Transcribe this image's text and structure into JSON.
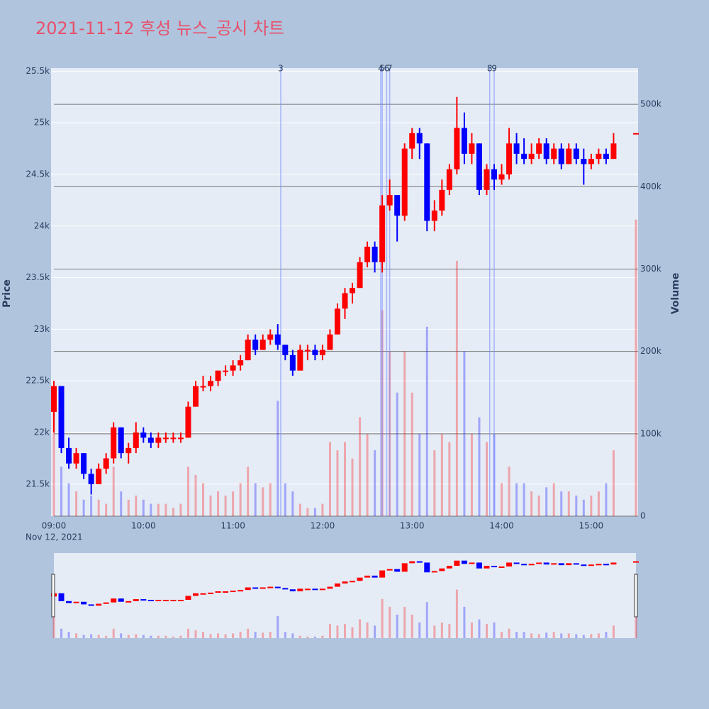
{
  "chart_data": {
    "type": "candlestick",
    "title": "2021-11-12 후성 뉴스_공시 차트",
    "y_title": "Price",
    "y2_title": "Volume",
    "x_date_label": "Nov 12, 2021",
    "increasing_color": "#ff0000",
    "decreasing_color": "#0000ff",
    "xlim": [
      "09:00",
      "15:30"
    ],
    "xticks": [
      "09:00",
      "10:00",
      "11:00",
      "12:00",
      "13:00",
      "14:00",
      "15:00"
    ],
    "ylim": [
      21190,
      25530
    ],
    "yticks": [
      {
        "value": 21500,
        "label": "21.5k"
      },
      {
        "value": 22000,
        "label": "22k"
      },
      {
        "value": 22500,
        "label": "22.5k"
      },
      {
        "value": 23000,
        "label": "23k"
      },
      {
        "value": 23500,
        "label": "23.5k"
      },
      {
        "value": 24000,
        "label": "24k"
      },
      {
        "value": 24500,
        "label": "24.5k"
      },
      {
        "value": 25000,
        "label": "25k"
      },
      {
        "value": 25500,
        "label": "25.5k"
      }
    ],
    "y2lim": [
      0,
      544000
    ],
    "y2ticks": [
      0,
      {
        "value": 100000,
        "label": "100k"
      },
      {
        "value": 200000,
        "label": "200k"
      },
      {
        "value": 300000,
        "label": "300k"
      },
      {
        "value": 400000,
        "label": "400k"
      },
      {
        "value": 500000,
        "label": "500k"
      }
    ],
    "x": [
      "09:00",
      "09:05",
      "09:10",
      "09:15",
      "09:20",
      "09:25",
      "09:30",
      "09:35",
      "09:40",
      "09:45",
      "09:50",
      "09:55",
      "10:00",
      "10:05",
      "10:10",
      "10:15",
      "10:20",
      "10:25",
      "10:30",
      "10:35",
      "10:40",
      "10:45",
      "10:50",
      "10:55",
      "11:00",
      "11:05",
      "11:10",
      "11:15",
      "11:20",
      "11:25",
      "11:30",
      "11:35",
      "11:40",
      "11:45",
      "11:50",
      "11:55",
      "12:00",
      "12:05",
      "12:10",
      "12:15",
      "12:20",
      "12:25",
      "12:30",
      "12:35",
      "12:40",
      "12:45",
      "12:50",
      "12:55",
      "13:00",
      "13:05",
      "13:10",
      "13:15",
      "13:20",
      "13:25",
      "13:30",
      "13:35",
      "13:40",
      "13:45",
      "13:50",
      "13:55",
      "14:00",
      "14:05",
      "14:10",
      "14:15",
      "14:20",
      "14:25",
      "14:30",
      "14:35",
      "14:40",
      "14:45",
      "14:50",
      "14:55",
      "15:00",
      "15:05",
      "15:10",
      "15:15",
      "15:30"
    ],
    "open": [
      22200,
      22450,
      21850,
      21700,
      21800,
      21600,
      21500,
      21650,
      21750,
      22050,
      21800,
      21850,
      22000,
      21950,
      21900,
      21950,
      21950,
      21950,
      21950,
      22250,
      22450,
      22450,
      22500,
      22600,
      22600,
      22650,
      22700,
      22900,
      22800,
      22900,
      22950,
      22850,
      22750,
      22600,
      22800,
      22800,
      22750,
      22800,
      22950,
      23200,
      23350,
      23400,
      23650,
      23800,
      23650,
      24200,
      24300,
      24100,
      24750,
      24900,
      24800,
      24050,
      24150,
      24350,
      24550,
      24950,
      24700,
      24800,
      24350,
      24550,
      24450,
      24500,
      24800,
      24700,
      24650,
      24700,
      24800,
      24650,
      24750,
      24600,
      24750,
      24650,
      24600,
      24650,
      24700,
      24650,
      24900
    ],
    "high": [
      22500,
      22450,
      21950,
      21850,
      21800,
      21650,
      21700,
      21800,
      22100,
      22050,
      21900,
      22100,
      22050,
      22000,
      22000,
      22000,
      22000,
      22000,
      22300,
      22500,
      22550,
      22550,
      22600,
      22650,
      22700,
      22750,
      22950,
      22950,
      22950,
      23000,
      23050,
      22850,
      22800,
      22850,
      22850,
      22850,
      22850,
      23000,
      23250,
      23400,
      23450,
      23700,
      23850,
      23850,
      24300,
      24450,
      24300,
      24800,
      24950,
      24950,
      24800,
      24250,
      24450,
      24600,
      25250,
      25100,
      24900,
      24800,
      24600,
      24600,
      24600,
      24950,
      24900,
      24850,
      24800,
      24850,
      24850,
      24800,
      24800,
      24800,
      24800,
      24750,
      24700,
      24750,
      24750,
      24900,
      24900
    ],
    "low": [
      22000,
      21800,
      21650,
      21650,
      21550,
      21400,
      21500,
      21600,
      21700,
      21750,
      21700,
      21800,
      21900,
      21850,
      21850,
      21900,
      21900,
      21900,
      21950,
      22250,
      22400,
      22400,
      22450,
      22550,
      22550,
      22600,
      22700,
      22750,
      22800,
      22850,
      22800,
      22700,
      22550,
      22600,
      22700,
      22700,
      22700,
      22800,
      22950,
      23100,
      23250,
      23400,
      23600,
      23550,
      23550,
      24150,
      23850,
      24050,
      24650,
      24650,
      23950,
      23950,
      24100,
      24300,
      24500,
      24600,
      24600,
      24300,
      24300,
      24350,
      24400,
      24450,
      24600,
      24600,
      24600,
      24650,
      24600,
      24600,
      24550,
      24600,
      24600,
      24400,
      24550,
      24600,
      24600,
      24650,
      24900
    ],
    "close": [
      22450,
      21850,
      21700,
      21800,
      21600,
      21500,
      21650,
      21750,
      22050,
      21800,
      21850,
      22000,
      21950,
      21900,
      21950,
      21950,
      21950,
      21950,
      22250,
      22450,
      22450,
      22500,
      22600,
      22600,
      22650,
      22700,
      22900,
      22800,
      22900,
      22950,
      22850,
      22750,
      22600,
      22800,
      22800,
      22750,
      22800,
      22950,
      23200,
      23350,
      23400,
      23650,
      23800,
      23650,
      24200,
      24300,
      24100,
      24750,
      24900,
      24800,
      24050,
      24150,
      24350,
      24550,
      24950,
      24700,
      24800,
      24350,
      24550,
      24450,
      24500,
      24800,
      24700,
      24650,
      24700,
      24800,
      24650,
      24750,
      24600,
      24750,
      24650,
      24600,
      24650,
      24700,
      24650,
      24800,
      24900
    ],
    "volume": [
      150000,
      60000,
      40000,
      30000,
      20000,
      25000,
      20000,
      15000,
      60000,
      30000,
      20000,
      25000,
      20000,
      15000,
      15000,
      15000,
      10000,
      15000,
      60000,
      50000,
      40000,
      25000,
      30000,
      25000,
      30000,
      40000,
      60000,
      40000,
      35000,
      40000,
      140000,
      40000,
      30000,
      15000,
      10000,
      10000,
      15000,
      90000,
      80000,
      90000,
      70000,
      120000,
      100000,
      80000,
      250000,
      200000,
      150000,
      200000,
      150000,
      100000,
      230000,
      80000,
      100000,
      90000,
      310000,
      200000,
      100000,
      120000,
      90000,
      100000,
      40000,
      60000,
      40000,
      40000,
      30000,
      25000,
      35000,
      40000,
      30000,
      30000,
      25000,
      20000,
      25000,
      30000,
      40000,
      80000,
      360000
    ],
    "annotations": [
      {
        "label": "3",
        "x": "11:32"
      },
      {
        "label": "4",
        "x": "12:39"
      },
      {
        "label": "5",
        "x": "12:40"
      },
      {
        "label": "6",
        "x": "12:43"
      },
      {
        "label": "7",
        "x": "12:45"
      },
      {
        "label": "8",
        "x": "13:52"
      },
      {
        "label": "9",
        "x": "13:55"
      }
    ]
  }
}
